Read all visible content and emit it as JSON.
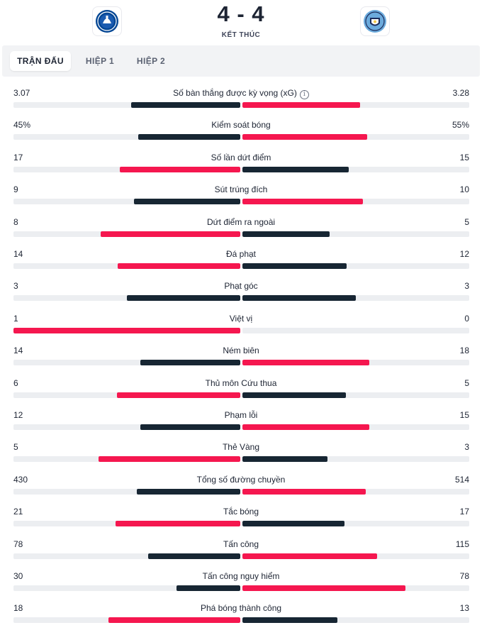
{
  "match": {
    "score": "4 - 4",
    "status": "KẾT THÚC",
    "home_logo": "chelsea-crest-icon",
    "away_logo": "man-city-crest-icon"
  },
  "tabs": [
    "TRẬN ĐẤU",
    "HIỆP 1",
    "HIỆP 2"
  ],
  "colors": {
    "leader": "#f5174f",
    "trailer": "#172633",
    "track": "#eceef1"
  },
  "stats": [
    {
      "label": "Số bàn thắng được kỳ vọng (xG)",
      "home": "3.07",
      "away": "3.28",
      "home_fill": 0.48,
      "away_fill": 0.52,
      "info": true
    },
    {
      "label": "Kiểm soát bóng",
      "home": "45%",
      "away": "55%",
      "home_fill": 0.45,
      "away_fill": 0.55
    },
    {
      "label": "Số lần dứt điểm",
      "home": "17",
      "away": "15",
      "home_fill": 0.53,
      "away_fill": 0.47
    },
    {
      "label": "Sút trúng đích",
      "home": "9",
      "away": "10",
      "home_fill": 0.47,
      "away_fill": 0.53
    },
    {
      "label": "Dứt điểm ra ngoài",
      "home": "8",
      "away": "5",
      "home_fill": 0.615,
      "away_fill": 0.385
    },
    {
      "label": "Đá phạt",
      "home": "14",
      "away": "12",
      "home_fill": 0.54,
      "away_fill": 0.46
    },
    {
      "label": "Phạt góc",
      "home": "3",
      "away": "3",
      "home_fill": 0.5,
      "away_fill": 0.5
    },
    {
      "label": "Việt vị",
      "home": "1",
      "away": "0",
      "home_fill": 1.0,
      "away_fill": 0.0
    },
    {
      "label": "Ném biên",
      "home": "14",
      "away": "18",
      "home_fill": 0.44,
      "away_fill": 0.56
    },
    {
      "label": "Thủ môn Cứu thua",
      "home": "6",
      "away": "5",
      "home_fill": 0.545,
      "away_fill": 0.455
    },
    {
      "label": "Phạm lỗi",
      "home": "12",
      "away": "15",
      "home_fill": 0.44,
      "away_fill": 0.56
    },
    {
      "label": "Thẻ Vàng",
      "home": "5",
      "away": "3",
      "home_fill": 0.625,
      "away_fill": 0.375
    },
    {
      "label": "Tổng số đường chuyền",
      "home": "430",
      "away": "514",
      "home_fill": 0.455,
      "away_fill": 0.545
    },
    {
      "label": "Tắc bóng",
      "home": "21",
      "away": "17",
      "home_fill": 0.55,
      "away_fill": 0.45
    },
    {
      "label": "Tấn công",
      "home": "78",
      "away": "115",
      "home_fill": 0.405,
      "away_fill": 0.595
    },
    {
      "label": "Tấn công nguy hiểm",
      "home": "30",
      "away": "78",
      "home_fill": 0.28,
      "away_fill": 0.72
    },
    {
      "label": "Phá bóng thành công",
      "home": "18",
      "away": "13",
      "home_fill": 0.58,
      "away_fill": 0.42
    }
  ]
}
